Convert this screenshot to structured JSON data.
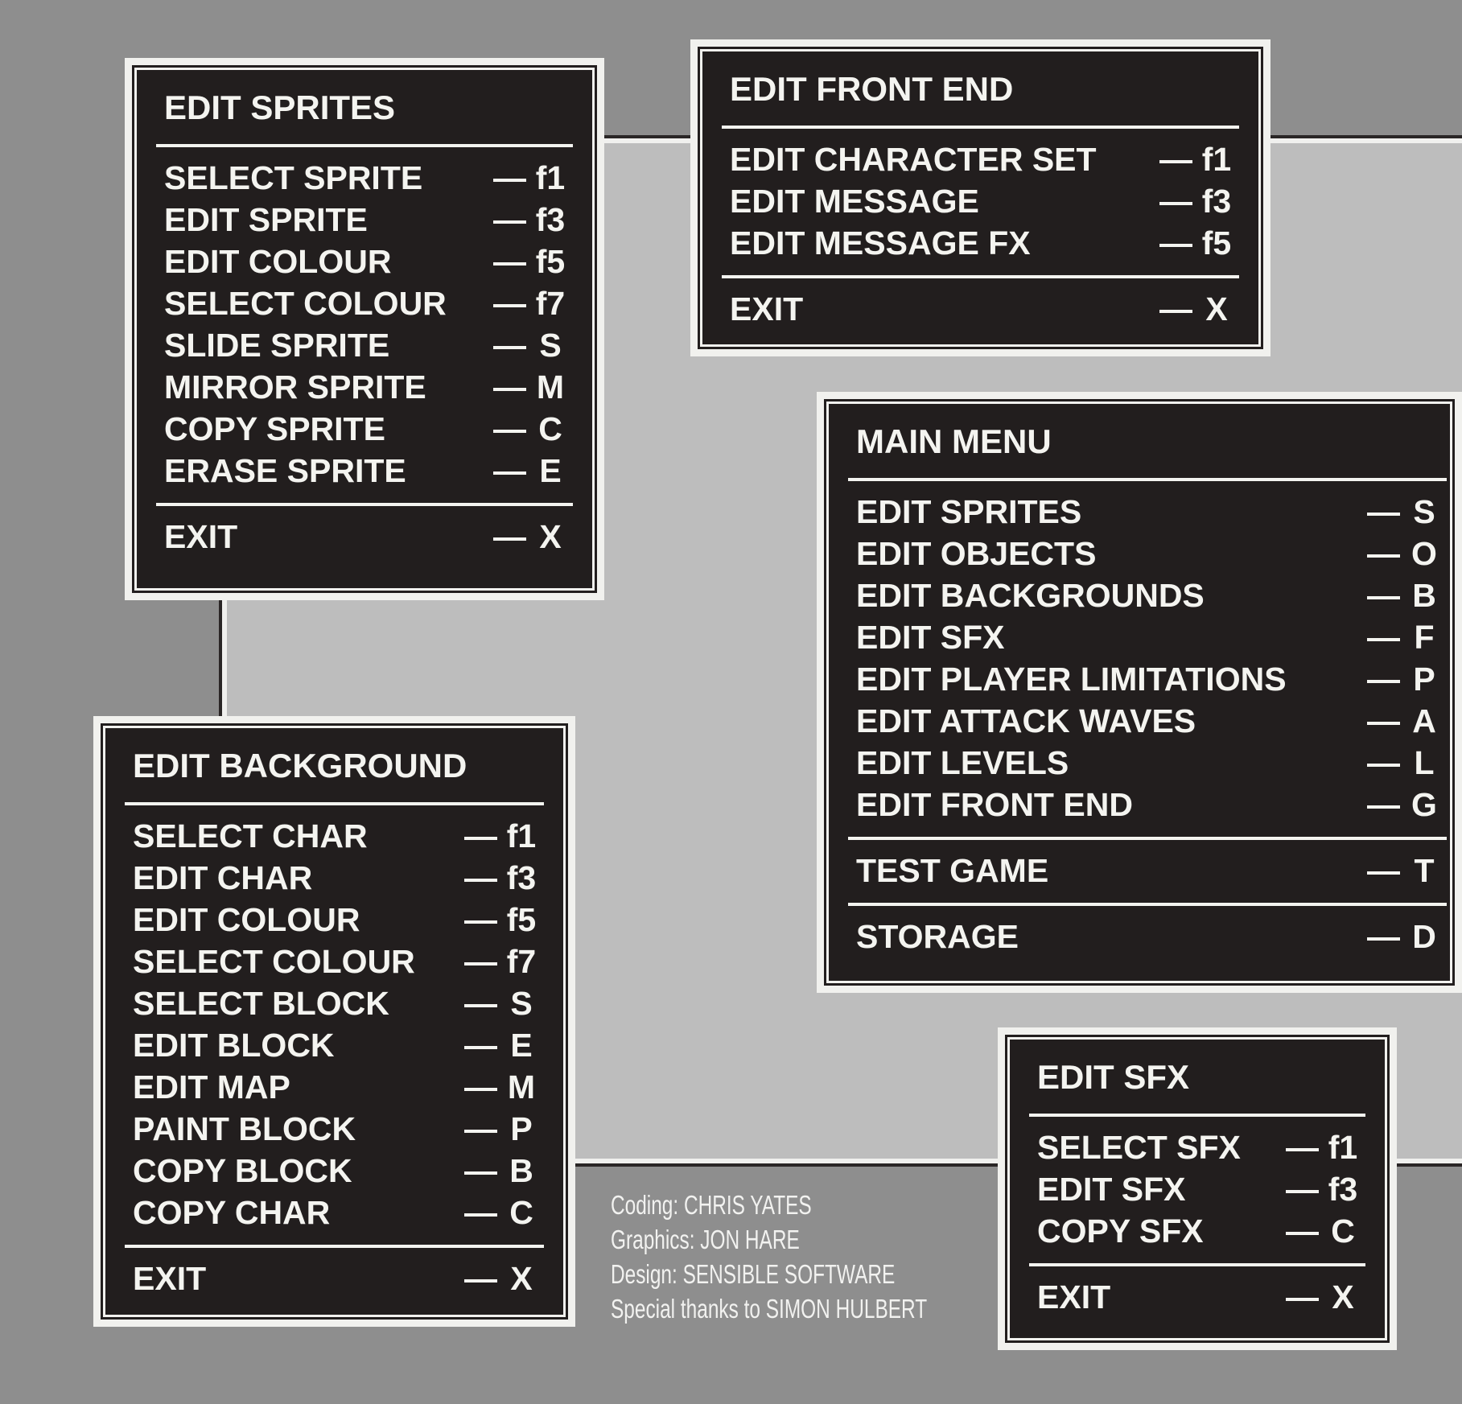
{
  "colors": {
    "panel": "#221e1e",
    "text": "#f4f4f0",
    "background_outer": "#8e8e8e",
    "background_inner": "#bdbdbd"
  },
  "dash": "—",
  "panels": {
    "sprites": {
      "title": "EDIT SPRITES",
      "groups": [
        [
          {
            "label": "SELECT SPRITE",
            "key": "f1"
          },
          {
            "label": "EDIT SPRITE",
            "key": "f3"
          },
          {
            "label": "EDIT COLOUR",
            "key": "f5"
          },
          {
            "label": "SELECT COLOUR",
            "key": "f7"
          },
          {
            "label": "SLIDE SPRITE",
            "key": "S"
          },
          {
            "label": "MIRROR SPRITE",
            "key": "M"
          },
          {
            "label": "COPY SPRITE",
            "key": "C"
          },
          {
            "label": "ERASE SPRITE",
            "key": "E"
          }
        ],
        [
          {
            "label": "EXIT",
            "key": "X"
          }
        ]
      ]
    },
    "front": {
      "title": "EDIT FRONT END",
      "groups": [
        [
          {
            "label": "EDIT CHARACTER SET",
            "key": "f1"
          },
          {
            "label": "EDIT MESSAGE",
            "key": "f3"
          },
          {
            "label": "EDIT MESSAGE FX",
            "key": "f5"
          }
        ],
        [
          {
            "label": "EXIT",
            "key": "X"
          }
        ]
      ]
    },
    "main": {
      "title": "MAIN MENU",
      "groups": [
        [
          {
            "label": "EDIT SPRITES",
            "key": "S"
          },
          {
            "label": "EDIT OBJECTS",
            "key": "O"
          },
          {
            "label": "EDIT BACKGROUNDS",
            "key": "B"
          },
          {
            "label": "EDIT SFX",
            "key": "F"
          },
          {
            "label": "EDIT PLAYER LIMITATIONS",
            "key": "P"
          },
          {
            "label": "EDIT ATTACK WAVES",
            "key": "A"
          },
          {
            "label": "EDIT LEVELS",
            "key": "L"
          },
          {
            "label": "EDIT FRONT END",
            "key": "G"
          }
        ],
        [
          {
            "label": "TEST GAME",
            "key": "T"
          }
        ],
        [
          {
            "label": "STORAGE",
            "key": "D"
          }
        ]
      ]
    },
    "bg": {
      "title": "EDIT BACKGROUND",
      "groups": [
        [
          {
            "label": "SELECT CHAR",
            "key": "f1"
          },
          {
            "label": "EDIT CHAR",
            "key": "f3"
          },
          {
            "label": "EDIT COLOUR",
            "key": "f5"
          },
          {
            "label": "SELECT COLOUR",
            "key": "f7"
          },
          {
            "label": "SELECT BLOCK",
            "key": "S"
          },
          {
            "label": "EDIT BLOCK",
            "key": "E"
          },
          {
            "label": "EDIT MAP",
            "key": "M"
          },
          {
            "label": "PAINT BLOCK",
            "key": "P"
          },
          {
            "label": "COPY BLOCK",
            "key": "B"
          },
          {
            "label": "COPY CHAR",
            "key": "C"
          }
        ],
        [
          {
            "label": "EXIT",
            "key": "X"
          }
        ]
      ]
    },
    "sfx": {
      "title": "EDIT  SFX",
      "groups": [
        [
          {
            "label": "SELECT SFX",
            "key": "f1"
          },
          {
            "label": "EDIT SFX",
            "key": "f3"
          },
          {
            "label": "COPY SFX",
            "key": "C"
          }
        ],
        [
          {
            "label": "EXIT",
            "key": "X"
          }
        ]
      ]
    }
  },
  "credits": [
    "Coding: CHRIS YATES",
    "Graphics: JON HARE",
    "Design: SENSIBLE SOFTWARE",
    "Special thanks to SIMON HULBERT"
  ]
}
